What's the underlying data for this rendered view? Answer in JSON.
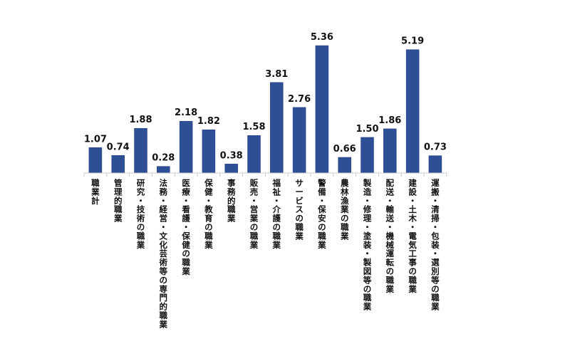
{
  "chart_data": {
    "type": "bar",
    "title": "",
    "xlabel": "",
    "ylabel": "",
    "grid": false,
    "legend": "none",
    "categories": [
      "職業計",
      "管理的職業",
      "研究・技術の職業",
      "法務・経営・文化芸術等の専門的職業",
      "医療・看護・保健の職業",
      "保健・教育の職業",
      "事務的職業",
      "販売・営業の職業",
      "福祉・介護の職業",
      "サービスの職業",
      "警備・保安の職業",
      "農林漁業の職業",
      "製造・修理・塗装・製図等の職業",
      "配送・輸送・機械運転の職業",
      "建設・土木・電気工事の職業",
      "運搬・清掃・包装・選別等の職業"
    ],
    "values": [
      1.07,
      0.74,
      1.88,
      0.28,
      2.18,
      1.82,
      0.38,
      1.58,
      3.81,
      2.76,
      5.36,
      0.66,
      1.5,
      1.86,
      5.19,
      0.73
    ],
    "value_labels": [
      "1.07",
      "0.74",
      "1.88",
      "0.28",
      "2.18",
      "1.82",
      "0.38",
      "1.58",
      "3.81",
      "2.76",
      "5.36",
      "0.66",
      "1.50",
      "1.86",
      "5.19",
      "0.73"
    ],
    "ylim": [
      0,
      5.6
    ],
    "colors": {
      "bar": "#2e4e95",
      "bar_stroke": "#23407f",
      "axis": "#c8c8c8",
      "text": "#111111"
    }
  }
}
